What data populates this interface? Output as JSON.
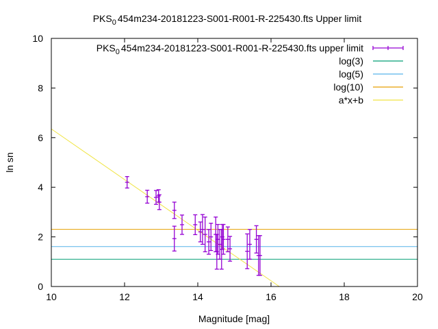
{
  "chart_data": {
    "type": "scatter",
    "title": {
      "prefix": "PKS",
      "sub": "0",
      "rest": "454m234-20181223-S001-R001-R-225430.fts Upper limit"
    },
    "xlabel": "Magnitude [mag]",
    "ylabel": "ln sn",
    "xlim": [
      10,
      20
    ],
    "ylim": [
      0,
      10
    ],
    "xticks": [
      "10",
      "12",
      "14",
      "16",
      "18",
      "20"
    ],
    "yticks": [
      "0",
      "2",
      "4",
      "6",
      "8",
      "10"
    ],
    "grid": false,
    "legend_position": "top-right",
    "series": [
      {
        "name_prefix": "PKS",
        "name_sub": "0",
        "name_rest": "454m234-20181223-S001-R001-R-225430.fts upper limit",
        "kind": "errorbars",
        "color": "#9400d3",
        "points": [
          [
            12.07,
            4.2,
            0.23
          ],
          [
            12.62,
            3.62,
            0.26
          ],
          [
            12.86,
            3.59,
            0.28
          ],
          [
            12.93,
            3.65,
            0.25
          ],
          [
            12.95,
            3.4,
            0.3
          ],
          [
            13.36,
            3.07,
            0.33
          ],
          [
            13.36,
            1.93,
            0.5
          ],
          [
            13.57,
            2.49,
            0.39
          ],
          [
            13.93,
            2.49,
            0.4
          ],
          [
            14.07,
            2.2,
            0.4
          ],
          [
            14.13,
            2.3,
            0.6
          ],
          [
            14.2,
            2.1,
            0.7
          ],
          [
            14.3,
            1.8,
            0.5
          ],
          [
            14.36,
            2.0,
            0.55
          ],
          [
            14.49,
            2.1,
            0.7
          ],
          [
            14.52,
            1.4,
            0.7
          ],
          [
            14.55,
            1.9,
            0.6
          ],
          [
            14.6,
            1.7,
            0.6
          ],
          [
            14.65,
            1.5,
            0.8
          ],
          [
            14.67,
            2.0,
            0.5
          ],
          [
            14.7,
            1.9,
            0.6
          ],
          [
            14.82,
            1.9,
            0.5
          ],
          [
            14.88,
            1.52,
            0.5
          ],
          [
            15.35,
            1.42,
            0.7
          ],
          [
            15.42,
            1.7,
            0.6
          ],
          [
            15.6,
            1.9,
            0.55
          ],
          [
            15.66,
            1.25,
            0.8
          ],
          [
            15.7,
            1.25,
            0.8
          ]
        ]
      },
      {
        "name": "log(3)",
        "kind": "hline",
        "value": 1.0986,
        "color": "#009e73"
      },
      {
        "name": "log(5)",
        "kind": "hline",
        "value": 1.6094,
        "color": "#56b4e9"
      },
      {
        "name": "log(10)",
        "kind": "hline",
        "value": 2.3026,
        "color": "#e69f00"
      },
      {
        "name": "a*x+b",
        "kind": "line",
        "a": -1.02,
        "b": 16.55,
        "color": "#f0e442"
      }
    ]
  }
}
